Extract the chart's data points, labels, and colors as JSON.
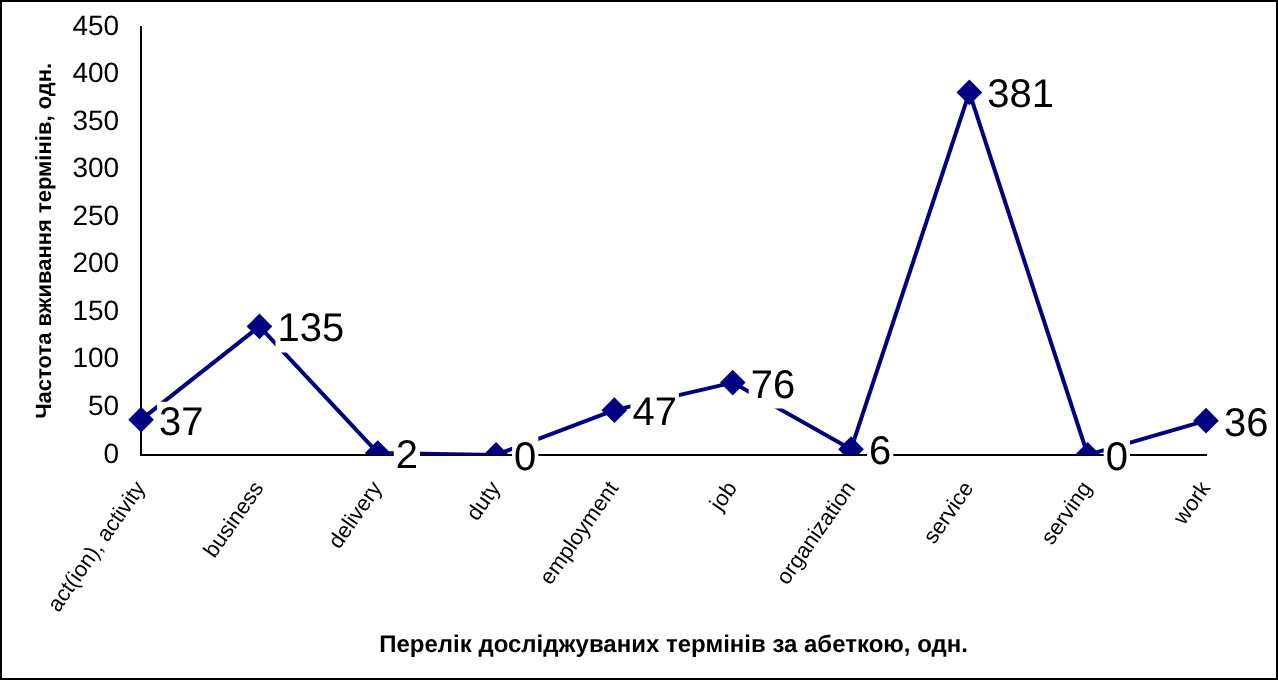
{
  "chart_data": {
    "type": "line",
    "xlabel": "Перелік досліджуваних термінів за абеткою, одн.",
    "ylabel": "Частота вживання термінів, одн.",
    "categories": [
      "act(ion), activity",
      "business",
      "delivery",
      "duty",
      "employment",
      "job",
      "organization",
      "service",
      "serving",
      "work"
    ],
    "series": [
      {
        "color": "#000080",
        "values": [
          37,
          135,
          2,
          0,
          47,
          76,
          6,
          381,
          0,
          36
        ]
      }
    ],
    "ylim": [
      0,
      450
    ],
    "yticks": [
      0,
      50,
      100,
      150,
      200,
      250,
      300,
      350,
      400,
      450
    ],
    "grid": false,
    "legend": false,
    "marker": "diamond",
    "line_style": "solid",
    "data_labels": true
  }
}
